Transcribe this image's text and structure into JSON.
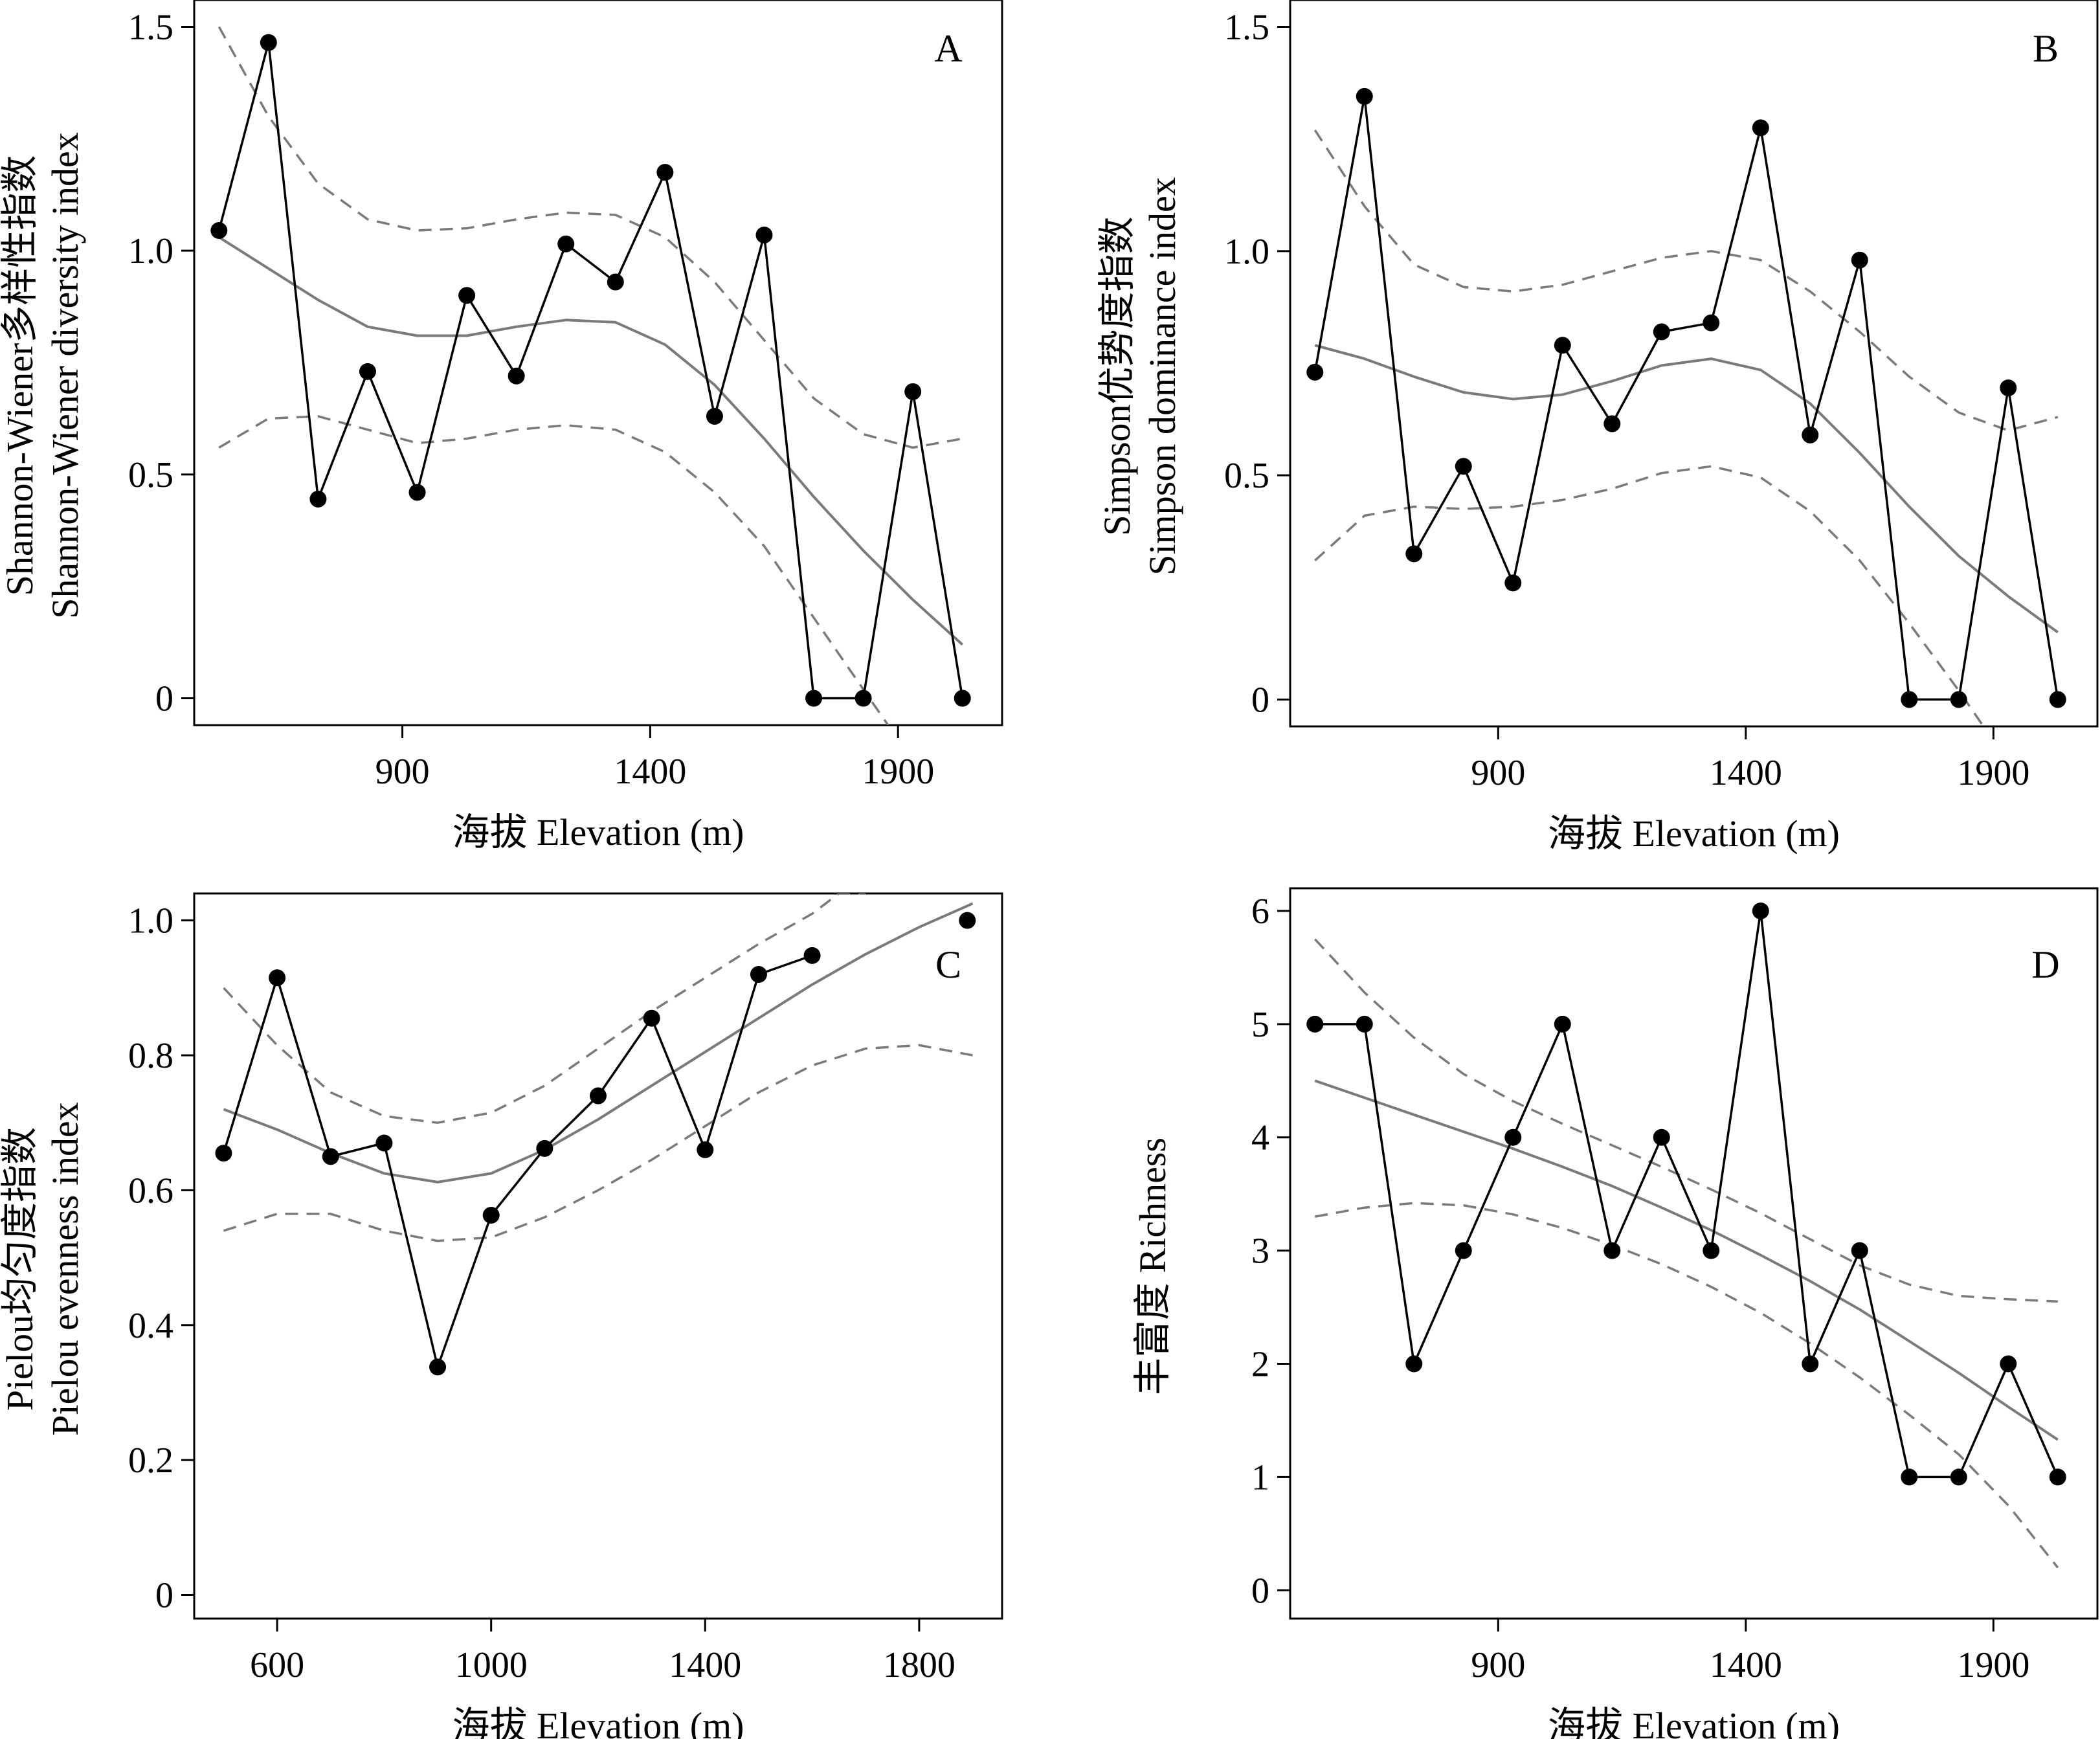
{
  "chart_data": [
    {
      "type": "line",
      "panel_label": "A",
      "xlabel": "海拔 Elevation (m)",
      "ylabel": [
        "Shannon-Wiener多样性指数",
        "Shannon-Wiener diversity index"
      ],
      "xlim": [
        480,
        2110
      ],
      "ylim": [
        -0.06,
        1.56
      ],
      "xticks": [
        900,
        1400,
        1900
      ],
      "yticks": [
        0,
        0.5,
        1.0,
        1.5
      ],
      "ytick_labels": [
        "0",
        "0.5",
        "1.0",
        "1.5"
      ],
      "series": [
        {
          "role": "observed",
          "style": "line+markers",
          "x": [
            530,
            630,
            730,
            830,
            930,
            1030,
            1130,
            1230,
            1330,
            1430,
            1530,
            1630,
            1730,
            1830,
            1930,
            2030
          ],
          "y": [
            1.045,
            1.465,
            0.445,
            0.73,
            0.46,
            0.9,
            0.72,
            1.015,
            0.93,
            1.175,
            0.63,
            1.035,
            0.0,
            0.0,
            0.685,
            0.0
          ]
        },
        {
          "role": "fit",
          "style": "line",
          "x": [
            530,
            630,
            730,
            830,
            930,
            1030,
            1130,
            1230,
            1330,
            1430,
            1530,
            1630,
            1730,
            1830,
            1930,
            2030
          ],
          "y": [
            1.03,
            0.96,
            0.89,
            0.83,
            0.81,
            0.81,
            0.83,
            0.845,
            0.84,
            0.79,
            0.7,
            0.58,
            0.45,
            0.33,
            0.22,
            0.12
          ]
        },
        {
          "role": "ci-upper",
          "style": "dashed",
          "x": [
            530,
            630,
            730,
            830,
            930,
            1030,
            1130,
            1230,
            1330,
            1430,
            1530,
            1630,
            1730,
            1830,
            1930,
            2030
          ],
          "y": [
            1.5,
            1.3,
            1.15,
            1.07,
            1.045,
            1.05,
            1.07,
            1.085,
            1.08,
            1.03,
            0.93,
            0.8,
            0.67,
            0.59,
            0.56,
            0.58
          ]
        },
        {
          "role": "ci-lower",
          "style": "dashed",
          "x": [
            530,
            630,
            730,
            830,
            930,
            1030,
            1130,
            1230,
            1330,
            1430,
            1530,
            1630,
            1730,
            1830,
            1880
          ],
          "y": [
            0.56,
            0.625,
            0.63,
            0.6,
            0.57,
            0.58,
            0.6,
            0.61,
            0.6,
            0.55,
            0.46,
            0.34,
            0.18,
            0.02,
            -0.06
          ]
        }
      ]
    },
    {
      "type": "line",
      "panel_label": "B",
      "xlabel": "海拔 Elevation (m)",
      "ylabel": [
        "Simpson优势度指数",
        "Simpson dominance index"
      ],
      "xlim": [
        480,
        2110
      ],
      "ylim": [
        -0.06,
        1.56
      ],
      "xticks": [
        900,
        1400,
        1900
      ],
      "yticks": [
        0,
        0.5,
        1.0,
        1.5
      ],
      "ytick_labels": [
        "0",
        "0.5",
        "1.0",
        "1.5"
      ],
      "series": [
        {
          "role": "observed",
          "style": "line+markers",
          "x": [
            530,
            630,
            730,
            830,
            930,
            1030,
            1130,
            1230,
            1330,
            1430,
            1530,
            1630,
            1730,
            1830,
            1930,
            2030
          ],
          "y": [
            0.73,
            1.345,
            0.325,
            0.52,
            0.26,
            0.79,
            0.615,
            0.82,
            0.84,
            1.275,
            0.59,
            0.98,
            0.0,
            0.0,
            0.695,
            0.0
          ]
        },
        {
          "role": "fit",
          "style": "line",
          "x": [
            530,
            630,
            730,
            830,
            930,
            1030,
            1130,
            1230,
            1330,
            1430,
            1530,
            1630,
            1730,
            1830,
            1930,
            2030
          ],
          "y": [
            0.79,
            0.76,
            0.72,
            0.685,
            0.67,
            0.68,
            0.71,
            0.745,
            0.76,
            0.735,
            0.66,
            0.55,
            0.43,
            0.32,
            0.23,
            0.15
          ]
        },
        {
          "role": "ci-upper",
          "style": "dashed",
          "x": [
            530,
            630,
            730,
            830,
            930,
            1030,
            1130,
            1230,
            1330,
            1430,
            1530,
            1630,
            1730,
            1830,
            1930,
            2030
          ],
          "y": [
            1.27,
            1.1,
            0.97,
            0.92,
            0.91,
            0.925,
            0.955,
            0.985,
            1.0,
            0.98,
            0.91,
            0.82,
            0.72,
            0.64,
            0.6,
            0.63
          ]
        },
        {
          "role": "ci-lower",
          "style": "dashed",
          "x": [
            530,
            630,
            730,
            830,
            930,
            1030,
            1130,
            1230,
            1330,
            1430,
            1530,
            1630,
            1730,
            1830,
            1880
          ],
          "y": [
            0.31,
            0.41,
            0.43,
            0.425,
            0.43,
            0.445,
            0.47,
            0.505,
            0.52,
            0.495,
            0.42,
            0.31,
            0.17,
            0.02,
            -0.06
          ]
        }
      ]
    },
    {
      "type": "line",
      "panel_label": "C",
      "xlabel": "海拔 Elevation (m)",
      "ylabel": [
        "Pielou均匀度指数",
        "Pielou evenness index"
      ],
      "xlim": [
        445,
        1955
      ],
      "ylim": [
        -0.035,
        1.04
      ],
      "xticks": [
        600,
        1000,
        1400,
        1800
      ],
      "yticks": [
        0,
        0.2,
        0.4,
        0.6,
        0.8,
        1.0
      ],
      "ytick_labels": [
        "0",
        "0.2",
        "0.4",
        "0.6",
        "0.8",
        "1.0"
      ],
      "series": [
        {
          "role": "observed",
          "style": "line+markers",
          "x": [
            500,
            600,
            700,
            800,
            900,
            1000,
            1100,
            1200,
            1300,
            1400,
            1500,
            1600
          ],
          "y": [
            0.655,
            0.915,
            0.65,
            0.67,
            0.338,
            0.563,
            0.662,
            0.74,
            0.855,
            0.66,
            0.92,
            0.948
          ]
        },
        {
          "role": "observed-isolated",
          "style": "markers",
          "x": [
            1890
          ],
          "y": [
            1.0
          ]
        },
        {
          "role": "fit",
          "style": "line",
          "x": [
            500,
            600,
            700,
            800,
            900,
            1000,
            1100,
            1200,
            1300,
            1400,
            1500,
            1600,
            1700,
            1800,
            1900
          ],
          "y": [
            0.72,
            0.69,
            0.655,
            0.625,
            0.612,
            0.625,
            0.66,
            0.705,
            0.755,
            0.805,
            0.855,
            0.905,
            0.95,
            0.99,
            1.025
          ]
        },
        {
          "role": "ci-upper",
          "style": "dashed",
          "x": [
            500,
            600,
            700,
            800,
            900,
            1000,
            1100,
            1200,
            1300,
            1400,
            1500,
            1600,
            1650,
            1700
          ],
          "y": [
            0.9,
            0.815,
            0.745,
            0.71,
            0.7,
            0.715,
            0.755,
            0.81,
            0.865,
            0.915,
            0.965,
            1.01,
            1.04,
            1.04
          ]
        },
        {
          "role": "ci-lower",
          "style": "dashed",
          "x": [
            500,
            600,
            700,
            800,
            900,
            1000,
            1100,
            1200,
            1300,
            1400,
            1500,
            1600,
            1700,
            1800,
            1900
          ],
          "y": [
            0.54,
            0.565,
            0.565,
            0.54,
            0.525,
            0.53,
            0.56,
            0.6,
            0.645,
            0.695,
            0.745,
            0.785,
            0.81,
            0.815,
            0.8
          ]
        }
      ]
    },
    {
      "type": "line",
      "panel_label": "D",
      "xlabel": "海拔 Elevation (m)",
      "ylabel": [
        "丰富度 Richness"
      ],
      "xlim": [
        480,
        2110
      ],
      "ylim": [
        -0.25,
        6.2
      ],
      "xticks": [
        900,
        1400,
        1900
      ],
      "yticks": [
        0,
        1,
        2,
        3,
        4,
        5,
        6
      ],
      "ytick_labels": [
        "0",
        "1",
        "2",
        "3",
        "4",
        "5",
        "6"
      ],
      "series": [
        {
          "role": "observed",
          "style": "line+markers",
          "x": [
            530,
            630,
            730,
            830,
            930,
            1030,
            1130,
            1230,
            1330,
            1430,
            1530,
            1630,
            1730,
            1830,
            1930,
            2030
          ],
          "y": [
            5,
            5,
            2,
            3,
            4,
            5,
            3,
            4,
            3,
            6,
            2,
            3,
            1,
            1,
            2,
            1
          ]
        },
        {
          "role": "fit",
          "style": "line",
          "x": [
            530,
            630,
            730,
            830,
            930,
            1030,
            1130,
            1230,
            1330,
            1430,
            1530,
            1630,
            1730,
            1830,
            1930,
            2030
          ],
          "y": [
            4.5,
            4.35,
            4.2,
            4.05,
            3.9,
            3.74,
            3.57,
            3.38,
            3.18,
            2.96,
            2.73,
            2.48,
            2.2,
            1.92,
            1.62,
            1.33
          ]
        },
        {
          "role": "ci-upper",
          "style": "dashed",
          "x": [
            530,
            630,
            730,
            830,
            930,
            1030,
            1130,
            1230,
            1330,
            1430,
            1530,
            1630,
            1730,
            1830,
            1930,
            2030
          ],
          "y": [
            5.75,
            5.28,
            4.88,
            4.56,
            4.32,
            4.12,
            3.93,
            3.74,
            3.54,
            3.33,
            3.1,
            2.87,
            2.7,
            2.6,
            2.57,
            2.55
          ]
        },
        {
          "role": "ci-lower",
          "style": "dashed",
          "x": [
            530,
            630,
            730,
            830,
            930,
            1030,
            1130,
            1230,
            1330,
            1430,
            1530,
            1630,
            1730,
            1830,
            1930,
            2030
          ],
          "y": [
            3.3,
            3.38,
            3.42,
            3.4,
            3.32,
            3.2,
            3.05,
            2.88,
            2.68,
            2.45,
            2.18,
            1.88,
            1.55,
            1.2,
            0.75,
            0.2
          ]
        }
      ]
    }
  ]
}
